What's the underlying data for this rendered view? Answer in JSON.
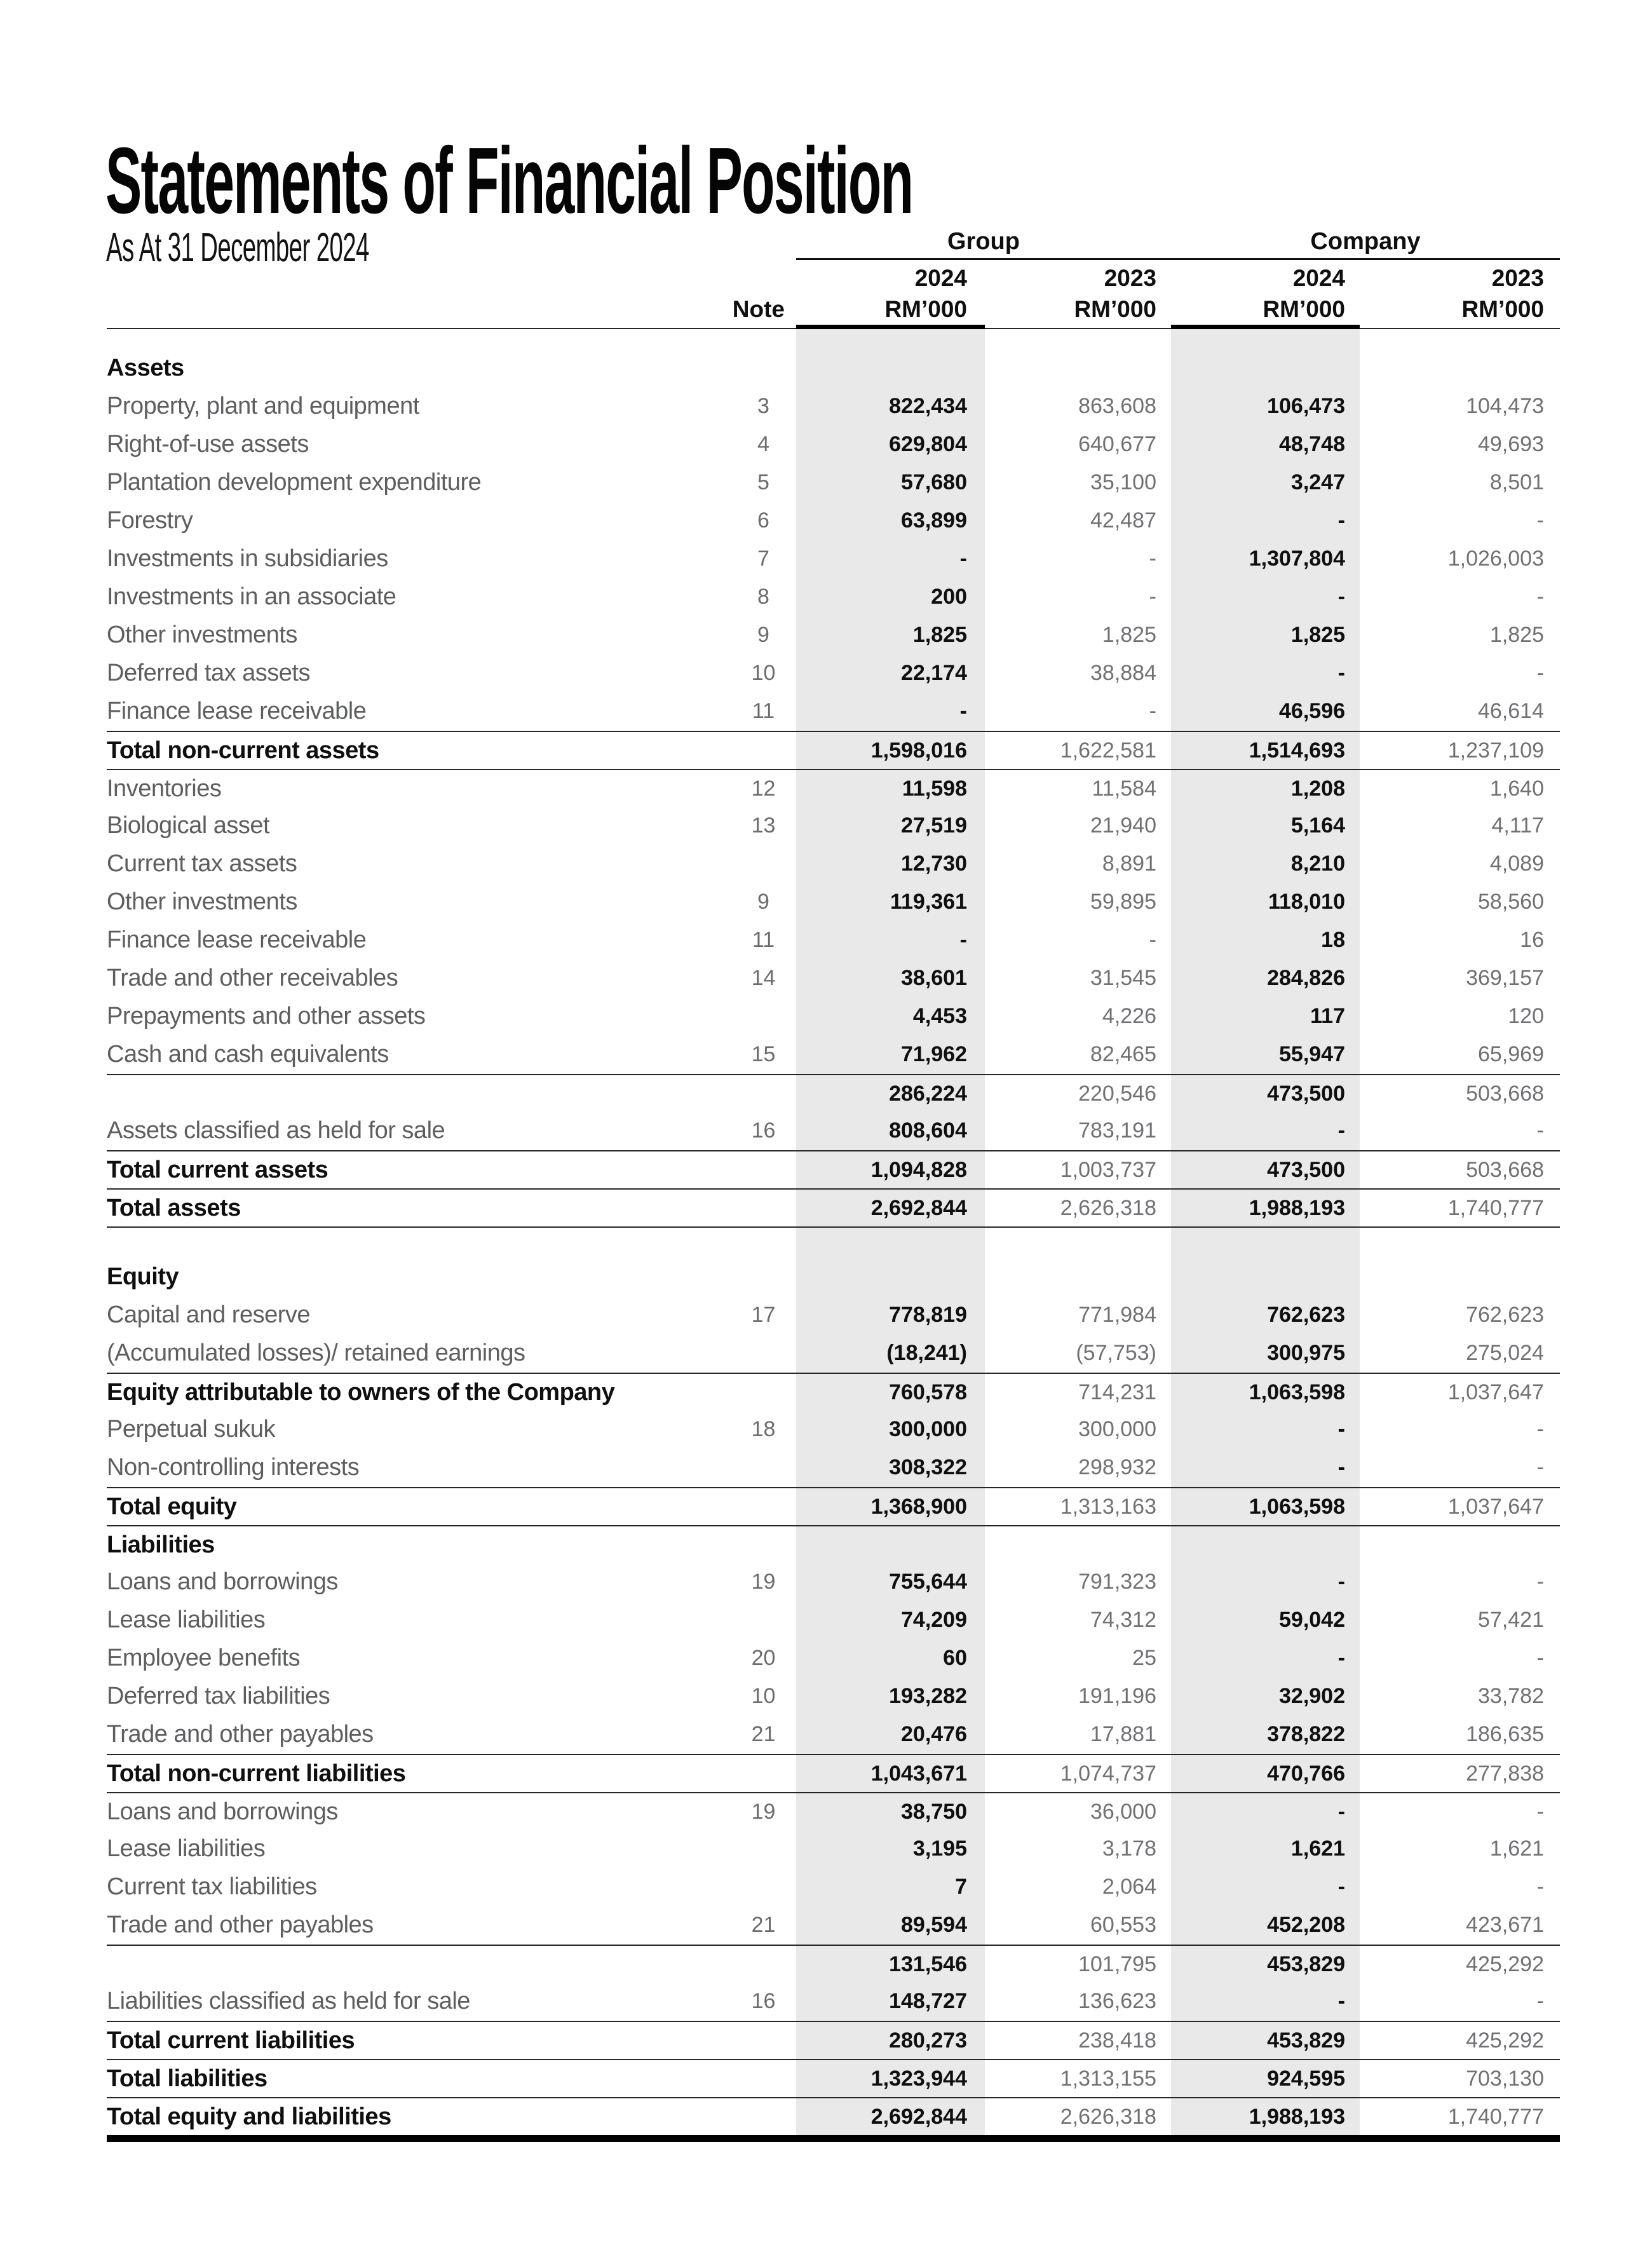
{
  "title": "Statements of Financial Position",
  "subtitle": "As At 31 December 2024",
  "colors": {
    "shaded_column_band": "#e9e9ea",
    "label_gray": "#5d5e60",
    "prior_year_gray": "#707174",
    "emphasis_black": "#0f0f10"
  },
  "table": {
    "note_label": "Note",
    "column_groups": [
      {
        "label": "Group"
      },
      {
        "label": "Company"
      }
    ],
    "columns": [
      {
        "group": "Group",
        "year": "2024",
        "unit": "RM’000",
        "shaded": true
      },
      {
        "group": "Group",
        "year": "2023",
        "unit": "RM’000",
        "shaded": false
      },
      {
        "group": "Company",
        "year": "2024",
        "unit": "RM’000",
        "shaded": true
      },
      {
        "group": "Company",
        "year": "2023",
        "unit": "RM’000",
        "shaded": false
      }
    ],
    "rows": [
      {
        "style": "spacer",
        "h": 32
      },
      {
        "style": "section",
        "label": "Assets"
      },
      {
        "style": "item",
        "label": "Property, plant and equipment",
        "note": "3",
        "values": [
          "822,434",
          "863,608",
          "106,473",
          "104,473"
        ]
      },
      {
        "style": "item",
        "label": "Right-of-use assets",
        "note": "4",
        "values": [
          "629,804",
          "640,677",
          "48,748",
          "49,693"
        ]
      },
      {
        "style": "item",
        "label": "Plantation development expenditure",
        "note": "5",
        "values": [
          "57,680",
          "35,100",
          "3,247",
          "8,501"
        ]
      },
      {
        "style": "item",
        "label": "Forestry",
        "note": "6",
        "values": [
          "63,899",
          "42,487",
          "-",
          "-"
        ]
      },
      {
        "style": "item",
        "label": "Investments in subsidiaries",
        "note": "7",
        "values": [
          "-",
          "-",
          "1,307,804",
          "1,026,003"
        ]
      },
      {
        "style": "item",
        "label": "Investments in an associate",
        "note": "8",
        "values": [
          "200",
          "-",
          "-",
          "-"
        ]
      },
      {
        "style": "item",
        "label": "Other investments",
        "note": "9",
        "values": [
          "1,825",
          "1,825",
          "1,825",
          "1,825"
        ]
      },
      {
        "style": "item",
        "label": "Deferred tax assets",
        "note": "10",
        "values": [
          "22,174",
          "38,884",
          "-",
          "-"
        ]
      },
      {
        "style": "item",
        "label": "Finance lease receivable",
        "note": "11",
        "values": [
          "-",
          "-",
          "46,596",
          "46,614"
        ]
      },
      {
        "style": "total",
        "label": "Total non-current assets",
        "note": "",
        "values": [
          "1,598,016",
          "1,622,581",
          "1,514,693",
          "1,237,109"
        ],
        "rule_top": true
      },
      {
        "style": "item",
        "label": "Inventories",
        "note": "12",
        "values": [
          "11,598",
          "11,584",
          "1,208",
          "1,640"
        ],
        "rule_top": true
      },
      {
        "style": "item",
        "label": "Biological asset",
        "note": "13",
        "values": [
          "27,519",
          "21,940",
          "5,164",
          "4,117"
        ]
      },
      {
        "style": "item",
        "label": "Current tax assets",
        "note": "",
        "values": [
          "12,730",
          "8,891",
          "8,210",
          "4,089"
        ]
      },
      {
        "style": "item",
        "label": "Other investments",
        "note": "9",
        "values": [
          "119,361",
          "59,895",
          "118,010",
          "58,560"
        ]
      },
      {
        "style": "item",
        "label": "Finance lease receivable",
        "note": "11",
        "values": [
          "-",
          "-",
          "18",
          "16"
        ]
      },
      {
        "style": "item",
        "label": "Trade and other receivables",
        "note": "14",
        "values": [
          "38,601",
          "31,545",
          "284,826",
          "369,157"
        ]
      },
      {
        "style": "item",
        "label": "Prepayments and other assets",
        "note": "",
        "values": [
          "4,453",
          "4,226",
          "117",
          "120"
        ]
      },
      {
        "style": "item",
        "label": "Cash and cash equivalents",
        "note": "15",
        "values": [
          "71,962",
          "82,465",
          "55,947",
          "65,969"
        ]
      },
      {
        "style": "subtotal",
        "label": "",
        "note": "",
        "values": [
          "286,224",
          "220,546",
          "473,500",
          "503,668"
        ],
        "rule_top": true
      },
      {
        "style": "item",
        "label": "Assets classified as held for sale",
        "note": "16",
        "values": [
          "808,604",
          "783,191",
          "-",
          "-"
        ]
      },
      {
        "style": "total",
        "label": "Total current assets",
        "note": "",
        "values": [
          "1,094,828",
          "1,003,737",
          "473,500",
          "503,668"
        ],
        "rule_top": true
      },
      {
        "style": "total",
        "label": "Total assets",
        "note": "",
        "values": [
          "2,692,844",
          "2,626,318",
          "1,988,193",
          "1,740,777"
        ],
        "rule_top": true
      },
      {
        "style": "spacer",
        "h": 50,
        "rule_top": true
      },
      {
        "style": "section",
        "label": "Equity"
      },
      {
        "style": "item",
        "label": "Capital and reserve",
        "note": "17",
        "values": [
          "778,819",
          "771,984",
          "762,623",
          "762,623"
        ]
      },
      {
        "style": "item",
        "label": "(Accumulated losses)/ retained earnings",
        "note": "",
        "values": [
          "(18,241)",
          "(57,753)",
          "300,975",
          "275,024"
        ]
      },
      {
        "style": "total",
        "label": "Equity attributable to owners of the Company",
        "note": "",
        "values": [
          "760,578",
          "714,231",
          "1,063,598",
          "1,037,647"
        ],
        "rule_top": true
      },
      {
        "style": "item",
        "label": "Perpetual sukuk",
        "note": "18",
        "values": [
          "300,000",
          "300,000",
          "-",
          "-"
        ]
      },
      {
        "style": "item",
        "label": "Non-controlling interests",
        "note": "",
        "values": [
          "308,322",
          "298,932",
          "-",
          "-"
        ]
      },
      {
        "style": "total",
        "label": "Total equity",
        "note": "",
        "values": [
          "1,368,900",
          "1,313,163",
          "1,063,598",
          "1,037,647"
        ],
        "rule_top": true
      },
      {
        "style": "section",
        "label": "Liabilities",
        "rule_top": true
      },
      {
        "style": "item",
        "label": "Loans and borrowings",
        "note": "19",
        "values": [
          "755,644",
          "791,323",
          "-",
          "-"
        ]
      },
      {
        "style": "item",
        "label": "Lease liabilities",
        "note": "",
        "values": [
          "74,209",
          "74,312",
          "59,042",
          "57,421"
        ]
      },
      {
        "style": "item",
        "label": "Employee benefits",
        "note": "20",
        "values": [
          "60",
          "25",
          "-",
          "-"
        ]
      },
      {
        "style": "item",
        "label": "Deferred tax liabilities",
        "note": "10",
        "values": [
          "193,282",
          "191,196",
          "32,902",
          "33,782"
        ]
      },
      {
        "style": "item",
        "label": "Trade and other payables",
        "note": "21",
        "values": [
          "20,476",
          "17,881",
          "378,822",
          "186,635"
        ]
      },
      {
        "style": "total",
        "label": "Total non-current liabilities",
        "note": "",
        "values": [
          "1,043,671",
          "1,074,737",
          "470,766",
          "277,838"
        ],
        "rule_top": true
      },
      {
        "style": "item",
        "label": "Loans and borrowings",
        "note": "19",
        "values": [
          "38,750",
          "36,000",
          "-",
          "-"
        ],
        "rule_top": true
      },
      {
        "style": "item",
        "label": "Lease liabilities",
        "note": "",
        "values": [
          "3,195",
          "3,178",
          "1,621",
          "1,621"
        ]
      },
      {
        "style": "item",
        "label": "Current tax liabilities",
        "note": "",
        "values": [
          "7",
          "2,064",
          "-",
          "-"
        ]
      },
      {
        "style": "item",
        "label": "Trade and other payables",
        "note": "21",
        "values": [
          "89,594",
          "60,553",
          "452,208",
          "423,671"
        ]
      },
      {
        "style": "subtotal",
        "label": "",
        "note": "",
        "values": [
          "131,546",
          "101,795",
          "453,829",
          "425,292"
        ],
        "rule_top": true
      },
      {
        "style": "item",
        "label": "Liabilities classified as held for sale",
        "note": "16",
        "values": [
          "148,727",
          "136,623",
          "-",
          "-"
        ]
      },
      {
        "style": "total",
        "label": "Total current liabilities",
        "note": "",
        "values": [
          "280,273",
          "238,418",
          "453,829",
          "425,292"
        ],
        "rule_top": true
      },
      {
        "style": "total",
        "label": "Total liabilities",
        "note": "",
        "values": [
          "1,323,944",
          "1,313,155",
          "924,595",
          "703,130"
        ],
        "rule_top": true
      },
      {
        "style": "total",
        "label": "Total equity and liabilities",
        "note": "",
        "values": [
          "2,692,844",
          "2,626,318",
          "1,988,193",
          "1,740,777"
        ],
        "rule_top": true
      }
    ]
  }
}
